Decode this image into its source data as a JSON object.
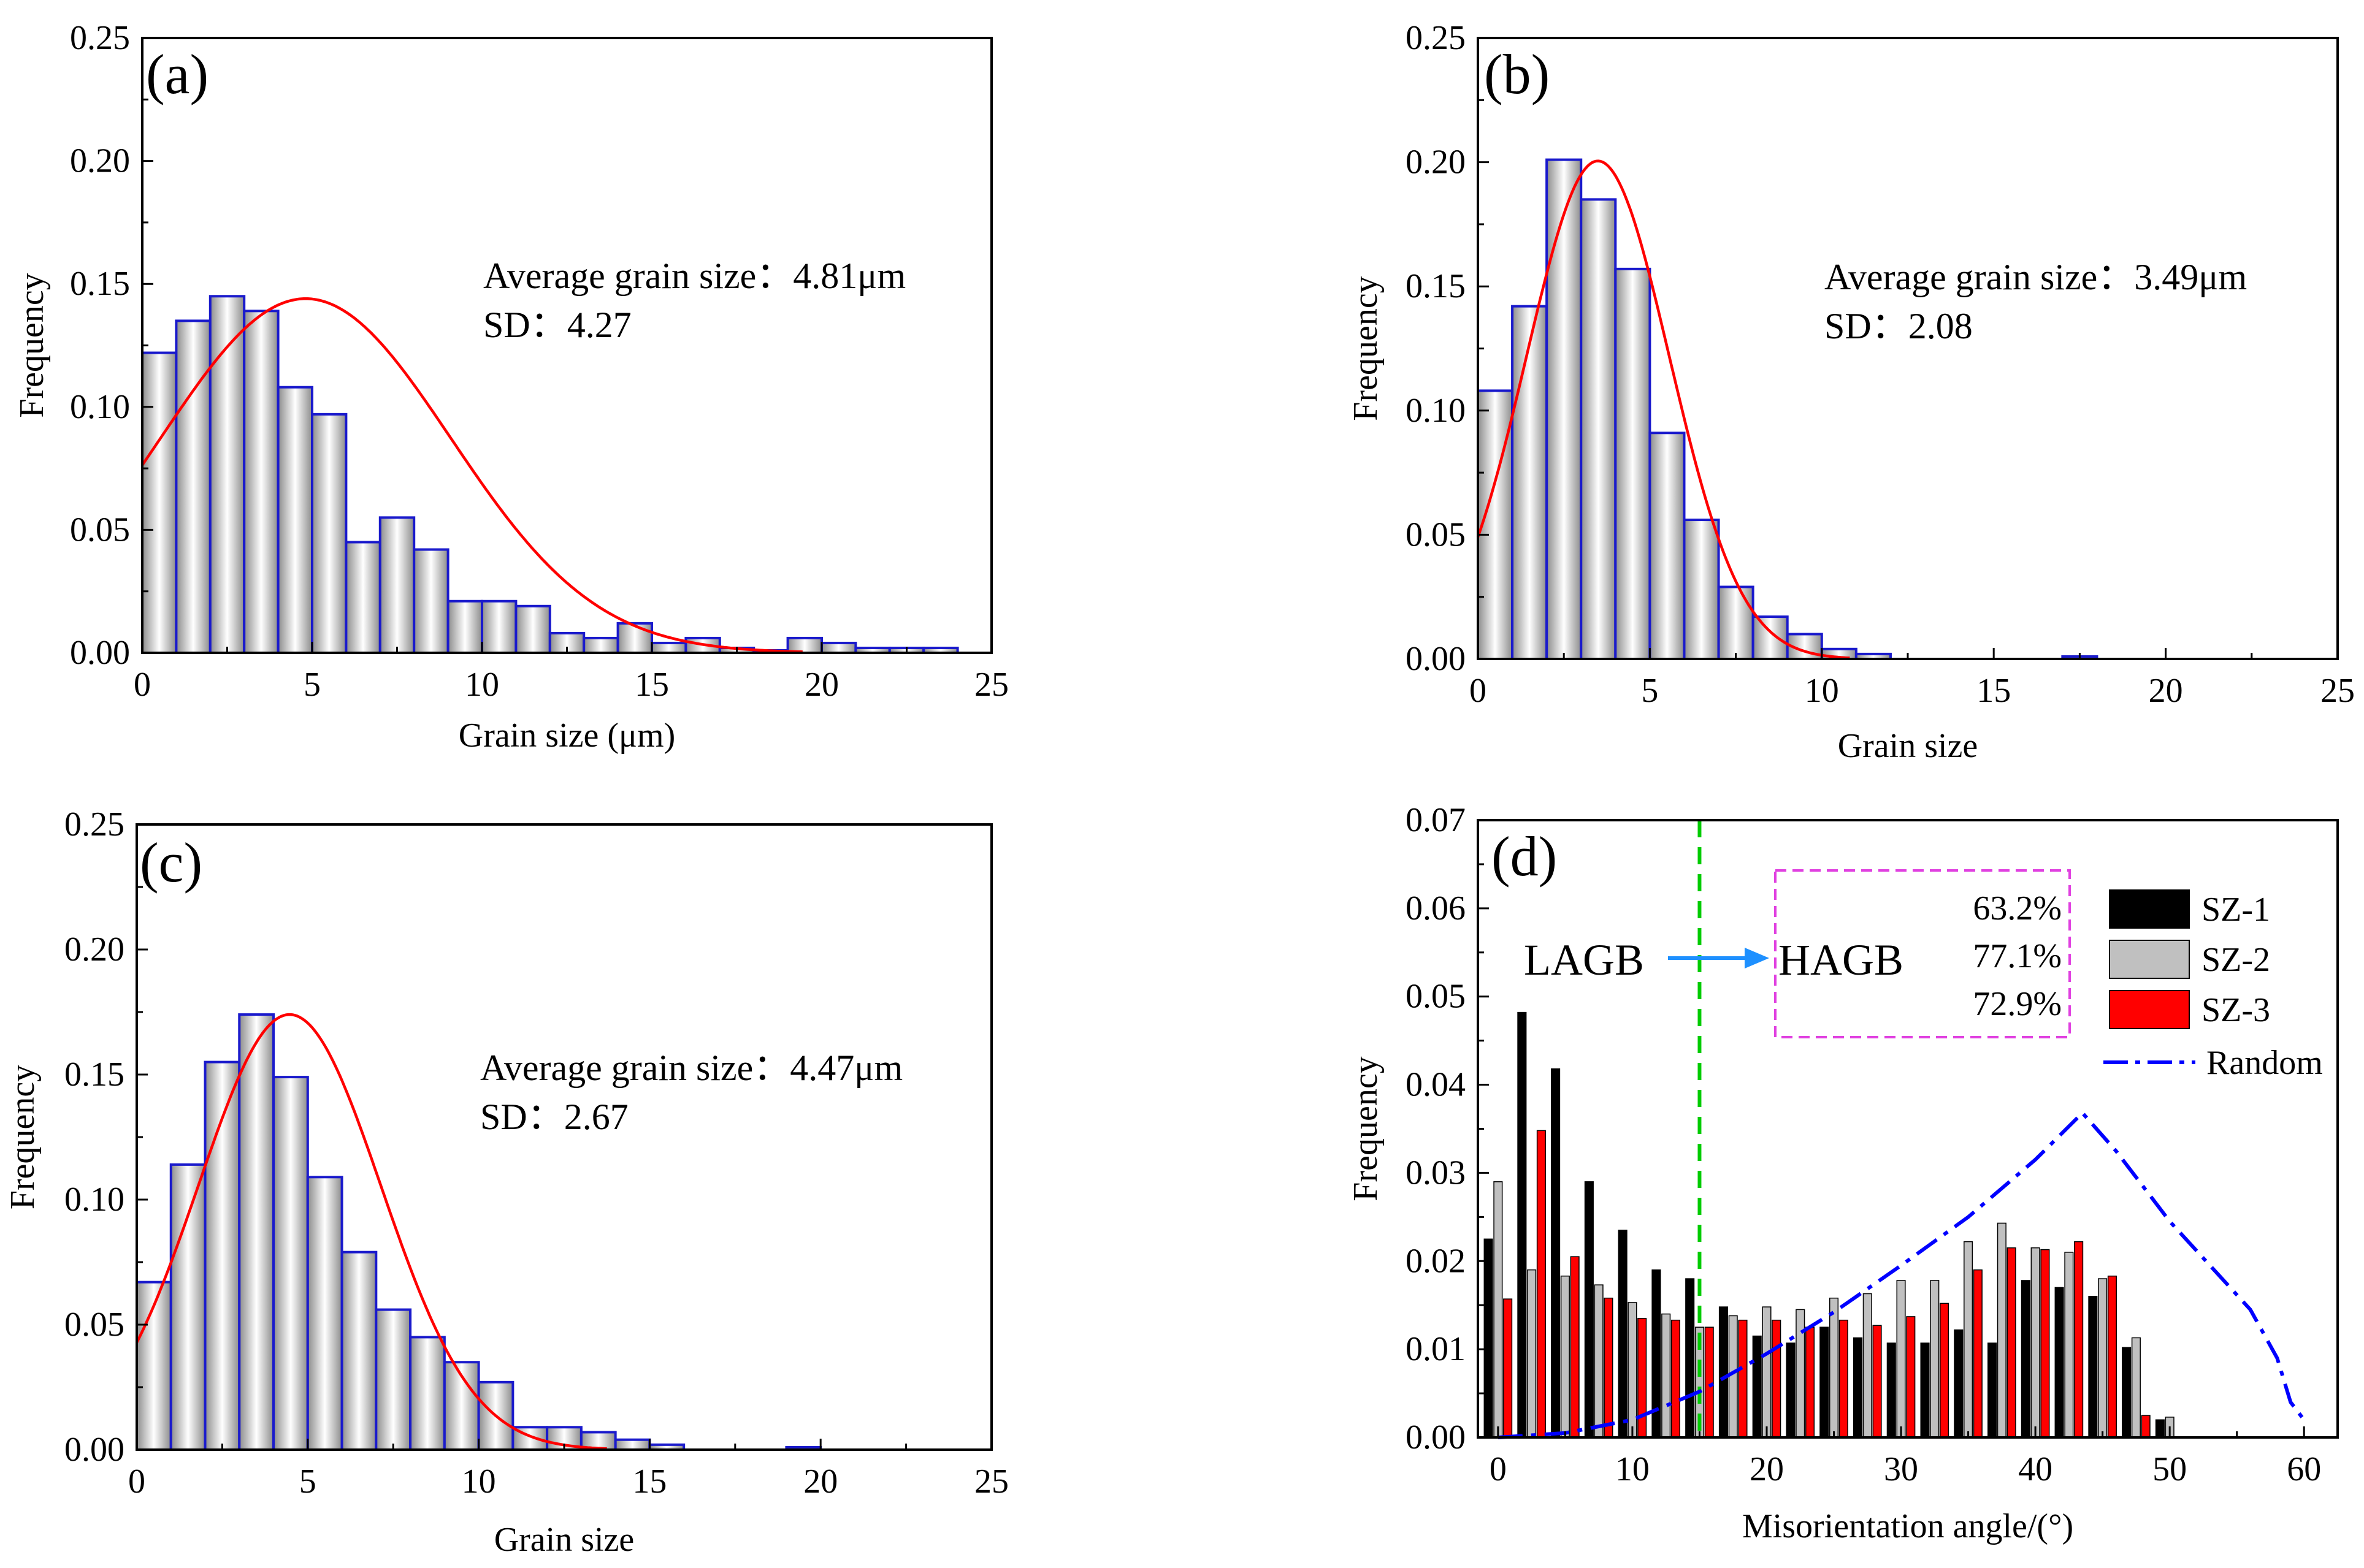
{
  "chart_data": [
    {
      "panel": "(a)",
      "type": "bar",
      "xlabel": "Grain size (μm)",
      "ylabel": "Frequency",
      "xlim": [
        0,
        25
      ],
      "ylim": [
        0,
        0.25
      ],
      "xticks": [
        "0",
        "5",
        "10",
        "15",
        "20",
        "25"
      ],
      "yticks": [
        "0.00",
        "0.05",
        "0.10",
        "0.15",
        "0.20",
        "0.25"
      ],
      "bin_width": 1,
      "bins_start": [
        0,
        1,
        2,
        3,
        4,
        5,
        6,
        7,
        8,
        9,
        10,
        11,
        12,
        13,
        14,
        15,
        16,
        17,
        18,
        19,
        20,
        21,
        22,
        23
      ],
      "values": [
        0.122,
        0.135,
        0.145,
        0.139,
        0.108,
        0.097,
        0.045,
        0.055,
        0.042,
        0.021,
        0.021,
        0.019,
        0.008,
        0.006,
        0.012,
        0.004,
        0.006,
        0.002,
        0.001,
        0.006,
        0.004,
        0.002,
        0.002,
        0.002
      ],
      "fit": {
        "mean": 4.81,
        "sd": 4.27,
        "peak": 0.144
      },
      "annotation_lines": [
        "Average grain size：4.81μm",
        "SD：4.27"
      ]
    },
    {
      "panel": "(b)",
      "type": "bar",
      "xlabel": "Grain size",
      "ylabel": "Frequency",
      "xlim": [
        0,
        25
      ],
      "ylim": [
        0,
        0.25
      ],
      "xticks": [
        "0",
        "5",
        "10",
        "15",
        "20",
        "25"
      ],
      "yticks": [
        "0.00",
        "0.05",
        "0.10",
        "0.15",
        "0.20",
        "0.25"
      ],
      "bin_width": 1,
      "bins_start": [
        0,
        1,
        2,
        3,
        4,
        5,
        6,
        7,
        8,
        9,
        10,
        11,
        17
      ],
      "values": [
        0.108,
        0.142,
        0.201,
        0.185,
        0.157,
        0.091,
        0.056,
        0.029,
        0.017,
        0.01,
        0.004,
        0.002,
        0.001
      ],
      "fit": {
        "mean": 3.49,
        "sd": 2.08,
        "peak": 0.2005
      },
      "annotation_lines": [
        "Average grain size：3.49μm",
        "SD：2.08"
      ]
    },
    {
      "panel": "(c)",
      "type": "bar",
      "xlabel": "Grain size",
      "ylabel": "Frequency",
      "xlim": [
        0,
        25
      ],
      "ylim": [
        0,
        0.25
      ],
      "xticks": [
        "0",
        "5",
        "10",
        "15",
        "20",
        "25"
      ],
      "yticks": [
        "0.00",
        "0.05",
        "0.10",
        "0.15",
        "0.20",
        "0.25"
      ],
      "bin_width": 1,
      "bins_start": [
        0,
        1,
        2,
        3,
        4,
        5,
        6,
        7,
        8,
        9,
        10,
        11,
        12,
        13,
        14,
        15,
        19
      ],
      "values": [
        0.067,
        0.114,
        0.155,
        0.174,
        0.149,
        0.109,
        0.079,
        0.056,
        0.045,
        0.035,
        0.027,
        0.009,
        0.009,
        0.007,
        0.004,
        0.002,
        0.001
      ],
      "fit": {
        "mean": 4.47,
        "sd": 2.67,
        "peak": 0.174
      },
      "annotation_lines": [
        "Average grain size：4.47μm",
        "SD：2.67"
      ]
    },
    {
      "panel": "(d)",
      "type": "bar",
      "xlabel": "Misorientation angle/(°)",
      "ylabel": "Frequency",
      "xlim": [
        -1.5,
        62.5
      ],
      "ylim": [
        0,
        0.07
      ],
      "xticks": [
        "0",
        "10",
        "20",
        "30",
        "40",
        "50",
        "60"
      ],
      "yticks": [
        "0.00",
        "0.01",
        "0.02",
        "0.03",
        "0.04",
        "0.05",
        "0.06",
        "0.07"
      ],
      "categories": [
        0,
        2.5,
        5,
        7.5,
        10,
        12.5,
        15,
        17.5,
        20,
        22.5,
        25,
        27.5,
        30,
        32.5,
        35,
        37.5,
        40,
        42.5,
        45,
        47.5,
        50,
        52.5,
        55,
        57.5,
        60
      ],
      "series": [
        {
          "name": "SZ-1",
          "color": "#000000",
          "values": [
            0.0225,
            0.0482,
            0.0418,
            0.029,
            0.0235,
            0.019,
            0.018,
            0.0148,
            0.0115,
            0.0107,
            0.0125,
            0.0113,
            0.0107,
            0.0107,
            0.0122,
            0.0107,
            0.0178,
            0.017,
            0.016,
            0.0102,
            0.002,
            0,
            0,
            0,
            0
          ]
        },
        {
          "name": "SZ-2",
          "color": "#c0c0c0",
          "values": [
            0.029,
            0.019,
            0.0183,
            0.0173,
            0.0153,
            0.014,
            0.0125,
            0.0138,
            0.0148,
            0.0145,
            0.0158,
            0.0163,
            0.0178,
            0.0178,
            0.0222,
            0.0243,
            0.0215,
            0.021,
            0.018,
            0.0113,
            0.0023,
            0,
            0,
            0,
            0
          ]
        },
        {
          "name": "SZ-3",
          "color": "#ff0000",
          "values": [
            0.0157,
            0.0348,
            0.0205,
            0.0158,
            0.0135,
            0.0133,
            0.0125,
            0.0133,
            0.0133,
            0.0125,
            0.0133,
            0.0127,
            0.0137,
            0.0152,
            0.019,
            0.0215,
            0.0213,
            0.0222,
            0.0183,
            0.0025,
            0,
            0,
            0,
            0,
            0
          ]
        }
      ],
      "random_curve": {
        "name": "Random",
        "color": "#0000ff",
        "x": [
          0,
          5,
          10,
          15,
          20,
          25,
          30,
          35,
          40,
          43.5,
          46,
          50,
          53,
          56,
          58,
          59,
          60
        ],
        "y": [
          0.0,
          0.0005,
          0.002,
          0.0052,
          0.0095,
          0.0142,
          0.0195,
          0.025,
          0.0315,
          0.0368,
          0.0325,
          0.0245,
          0.0195,
          0.0145,
          0.009,
          0.004,
          0.002
        ]
      },
      "threshold_line": {
        "x": 15,
        "color": "#00cc00"
      },
      "labels": {
        "lagb": "LAGB",
        "hagb": "HAGB"
      },
      "hagb_fractions": [
        "63.2%",
        "77.1%",
        "72.9%"
      ]
    }
  ]
}
